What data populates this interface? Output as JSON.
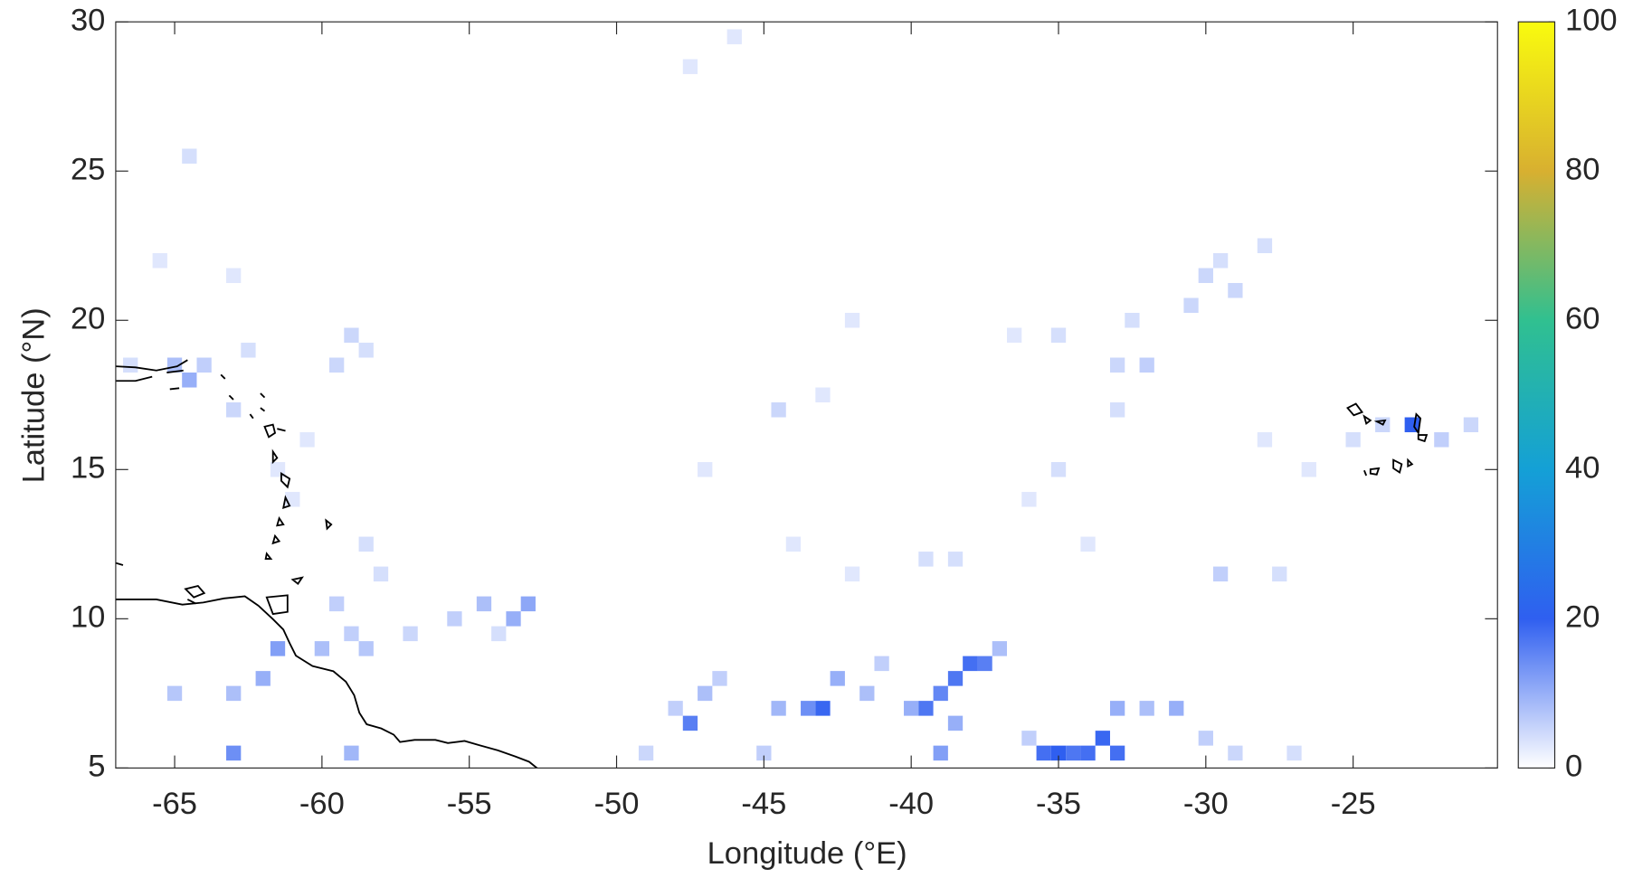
{
  "chart_data": {
    "type": "heatmap",
    "x_label": "Longitude (°E)",
    "y_label": "Latitude (°N)",
    "xlim": [
      -67,
      -20.1
    ],
    "ylim": [
      5,
      30
    ],
    "xticks": [
      -65,
      -60,
      -55,
      -50,
      -45,
      -40,
      -35,
      -30,
      -25
    ],
    "yticks": [
      5,
      10,
      15,
      20,
      25,
      30
    ],
    "clim": [
      0,
      100
    ],
    "cticks": [
      0,
      20,
      40,
      60,
      80,
      100
    ],
    "colormap": [
      "#ffffff",
      "#2f5ff0",
      "#14a0d6",
      "#30c090",
      "#d8b030",
      "#f9fb0e"
    ],
    "x": [
      -66.5,
      -65,
      -64.5,
      -64,
      -63,
      -62.5,
      -59,
      -58.5,
      -59.5,
      -60.5,
      -61.5,
      -61,
      -58.5,
      -58,
      -59.5,
      -59,
      -58.5,
      -60,
      -61.5,
      -62,
      -63,
      -65,
      -63,
      -59,
      -57,
      -55.5,
      -54.5,
      -53,
      -53.5,
      -54,
      -49,
      -48,
      -47.5,
      -47,
      -46.5,
      -45,
      -44.5,
      -43.5,
      -43,
      -42.5,
      -41.5,
      -41,
      -40,
      -39.5,
      -39,
      -38.5,
      -38,
      -37.5,
      -38.5,
      -39,
      -37,
      -36,
      -35.5,
      -35,
      -34.5,
      -34,
      -33.5,
      -33,
      -33,
      -32,
      -31,
      -30,
      -29,
      -27,
      -25,
      -24,
      -23,
      -22,
      -21,
      -29.5,
      -27.5,
      -28,
      -26.5,
      -38.5,
      -39.5,
      -44,
      -42,
      -34,
      -36,
      -35,
      -33,
      -32,
      -33,
      -30.5,
      -30,
      -29.5,
      -28,
      -29,
      -32.5,
      -35,
      -36.5,
      -43,
      -44.5,
      -42,
      -47,
      -64.5,
      -46,
      -47.5,
      -65.5,
      -63
    ],
    "y": [
      18.5,
      18.5,
      18,
      18.5,
      17,
      19,
      19.5,
      19,
      18.5,
      16,
      15,
      14,
      12.5,
      11.5,
      10.5,
      9.5,
      9,
      9,
      9,
      8,
      7.5,
      7.5,
      5.5,
      5.5,
      9.5,
      10,
      10.5,
      10.5,
      10,
      9.5,
      5.5,
      7,
      6.5,
      7.5,
      8,
      5.5,
      7,
      7,
      7,
      8,
      7.5,
      8.5,
      7,
      7,
      7.5,
      8,
      8.5,
      8.5,
      6.5,
      5.5,
      9,
      6,
      5.5,
      5.5,
      5.5,
      5.5,
      6,
      5.5,
      7,
      7,
      7,
      6,
      5.5,
      5.5,
      16,
      16.5,
      16.5,
      16,
      16.5,
      11.5,
      11.5,
      16,
      15,
      12,
      12,
      12.5,
      11.5,
      12.5,
      14,
      15,
      17,
      18.5,
      18.5,
      20.5,
      21.5,
      22,
      22.5,
      21,
      20,
      19.5,
      19.5,
      17.5,
      17,
      20,
      15,
      25.5,
      29.5,
      28.5,
      22,
      21.5
    ],
    "values": [
      4,
      8,
      10,
      6,
      5,
      4,
      5,
      4,
      5,
      3,
      3,
      3,
      4,
      4,
      6,
      6,
      7,
      8,
      12,
      10,
      8,
      7,
      14,
      9,
      5,
      6,
      8,
      11,
      10,
      4,
      5,
      6,
      16,
      8,
      6,
      6,
      9,
      14,
      19,
      10,
      8,
      6,
      10,
      17,
      15,
      17,
      18,
      16,
      10,
      12,
      8,
      6,
      18,
      20,
      17,
      18,
      19,
      18,
      10,
      8,
      10,
      6,
      5,
      4,
      4,
      5,
      20,
      6,
      5,
      6,
      4,
      3,
      3,
      4,
      4,
      3,
      3,
      3,
      3,
      4,
      4,
      6,
      5,
      5,
      5,
      4,
      4,
      5,
      4,
      4,
      3,
      3,
      5,
      3,
      3,
      4,
      3,
      3,
      3,
      3
    ]
  }
}
